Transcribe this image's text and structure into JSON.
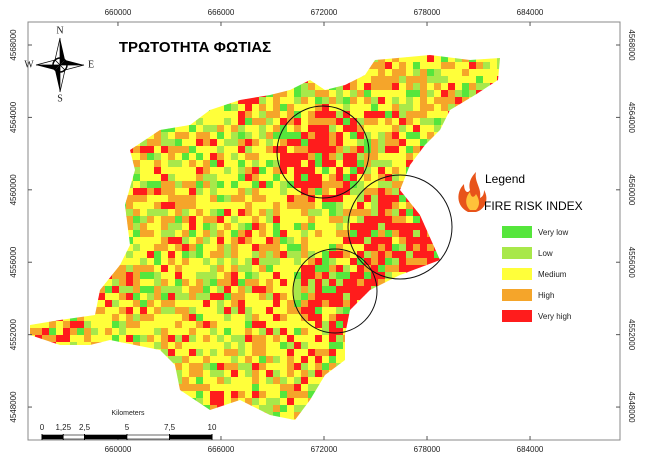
{
  "map": {
    "title": "ΤΡΩΤΟΤΗΤΑ ΦΩΤΙΑΣ",
    "xlim": [
      654760,
      689240
    ],
    "ylim": [
      4546180,
      4569270
    ],
    "xticks": [
      660000,
      666000,
      672000,
      678000,
      684000
    ],
    "yticks": [
      4568000,
      4564000,
      4560000,
      4556000,
      4552000,
      4548000
    ],
    "compass": {
      "north": "N",
      "south": "S",
      "east": "E",
      "west": "W"
    },
    "legend": {
      "title": "Legend",
      "subtitle": "FIRE RISK INDEX",
      "classes": [
        {
          "label": "Very low",
          "color": "#55e63c"
        },
        {
          "label": "Low",
          "color": "#a8e84a"
        },
        {
          "label": "Medium",
          "color": "#ffff3a"
        },
        {
          "label": "High",
          "color": "#f5a52a"
        },
        {
          "label": "Very high",
          "color": "#ff1c1c"
        }
      ]
    },
    "scale_bar": {
      "title": "Kilometers",
      "ticks": [
        0,
        {
          "value": 1.25,
          "label": "1,25"
        },
        {
          "value": 2.5,
          "label": "2,5"
        },
        5,
        {
          "value": 7.5,
          "label": "7,5"
        },
        10
      ]
    }
  }
}
